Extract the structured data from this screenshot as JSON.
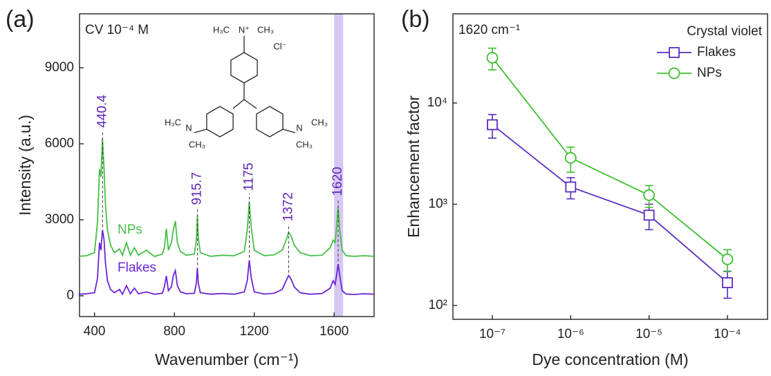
{
  "chart_data": [
    {
      "type": "line",
      "panel_label": "(a)",
      "annotation": "CV 10⁻⁴ M",
      "x_label": "Wavenumber (cm⁻¹)",
      "y_label": "Intensity (a.u.)",
      "xlim": [
        325,
        1800
      ],
      "ylim": [
        -820,
        11130
      ],
      "xticks": [
        400,
        800,
        1200,
        1600
      ],
      "yticks": [
        0,
        3000,
        6000,
        9000
      ],
      "highlight": [
        1600,
        1645
      ],
      "highlight_color": "#c9b4f2",
      "peaks": [
        440.4,
        915.7,
        1175,
        1372,
        1620
      ],
      "structure_labels": [
        "H₃C",
        "N⁺",
        "CH₃",
        "Cl⁻",
        "H₃C",
        "N",
        "CH₃",
        "N",
        "CH₃",
        "CH₃"
      ],
      "x": [
        320,
        360,
        400,
        415,
        425,
        432,
        440,
        448,
        455,
        465,
        480,
        500,
        525,
        540,
        560,
        580,
        600,
        620,
        660,
        700,
        740,
        750,
        760,
        770,
        785,
        795,
        805,
        815,
        830,
        860,
        900,
        910,
        915,
        920,
        930,
        980,
        1040,
        1100,
        1150,
        1165,
        1175,
        1185,
        1200,
        1250,
        1300,
        1340,
        1360,
        1372,
        1385,
        1400,
        1430,
        1480,
        1540,
        1580,
        1595,
        1605,
        1612,
        1620,
        1628,
        1640,
        1660,
        1700,
        1750,
        1800
      ],
      "series": [
        {
          "name": "NPs",
          "color": "#45bf45",
          "values": [
            1560,
            1580,
            1700,
            2900,
            5000,
            4700,
            6200,
            5000,
            3600,
            2600,
            2000,
            1700,
            1850,
            1600,
            2100,
            1600,
            1900,
            1600,
            1800,
            1550,
            1650,
            1900,
            2650,
            1800,
            2100,
            2600,
            2950,
            2100,
            1750,
            1600,
            1650,
            2200,
            3150,
            2300,
            1700,
            1560,
            1600,
            1580,
            1750,
            2600,
            3700,
            2700,
            1800,
            1580,
            1620,
            1800,
            2200,
            2500,
            2350,
            2000,
            1700,
            1580,
            1600,
            1900,
            2200,
            2100,
            2700,
            3500,
            2600,
            1800,
            1580,
            1560,
            1580,
            1560
          ]
        },
        {
          "name": "Flakes",
          "color": "#6a23d6",
          "values": [
            60,
            80,
            120,
            700,
            2100,
            1800,
            2600,
            2200,
            1300,
            600,
            250,
            120,
            250,
            60,
            400,
            80,
            300,
            80,
            150,
            60,
            100,
            350,
            780,
            200,
            350,
            800,
            1000,
            400,
            150,
            80,
            100,
            500,
            1100,
            500,
            120,
            60,
            90,
            60,
            150,
            600,
            1400,
            700,
            150,
            70,
            100,
            250,
            600,
            800,
            650,
            350,
            120,
            60,
            90,
            300,
            600,
            450,
            800,
            1250,
            800,
            200,
            70,
            50,
            80,
            60
          ]
        }
      ]
    },
    {
      "type": "line",
      "panel_label": "(b)",
      "annotation": "1620 cm⁻¹",
      "x_label": "Dye concentration (M)",
      "y_label": "Enhancement factor",
      "categories": [
        "10⁻⁷",
        "10⁻⁶",
        "10⁻⁵",
        "10⁻⁴"
      ],
      "log_y": true,
      "ylim": [
        73,
        76000
      ],
      "yticks": [
        {
          "value": 100,
          "label": "10²"
        },
        {
          "value": 1000,
          "label": "10³"
        },
        {
          "value": 10000,
          "label": "10⁴"
        }
      ],
      "legend_title": "Crystal violet",
      "legend": "upper right",
      "series": [
        {
          "name": "Flakes",
          "color": "#5a2bc0",
          "marker": "square",
          "values": [
            6100,
            1480,
            780,
            168
          ],
          "errors": [
            1600,
            350,
            220,
            50
          ]
        },
        {
          "name": "NPs",
          "color": "#3dbf2e",
          "marker": "circle",
          "values": [
            28000,
            2870,
            1230,
            286
          ],
          "errors": [
            6800,
            800,
            300,
            70
          ]
        }
      ]
    }
  ]
}
